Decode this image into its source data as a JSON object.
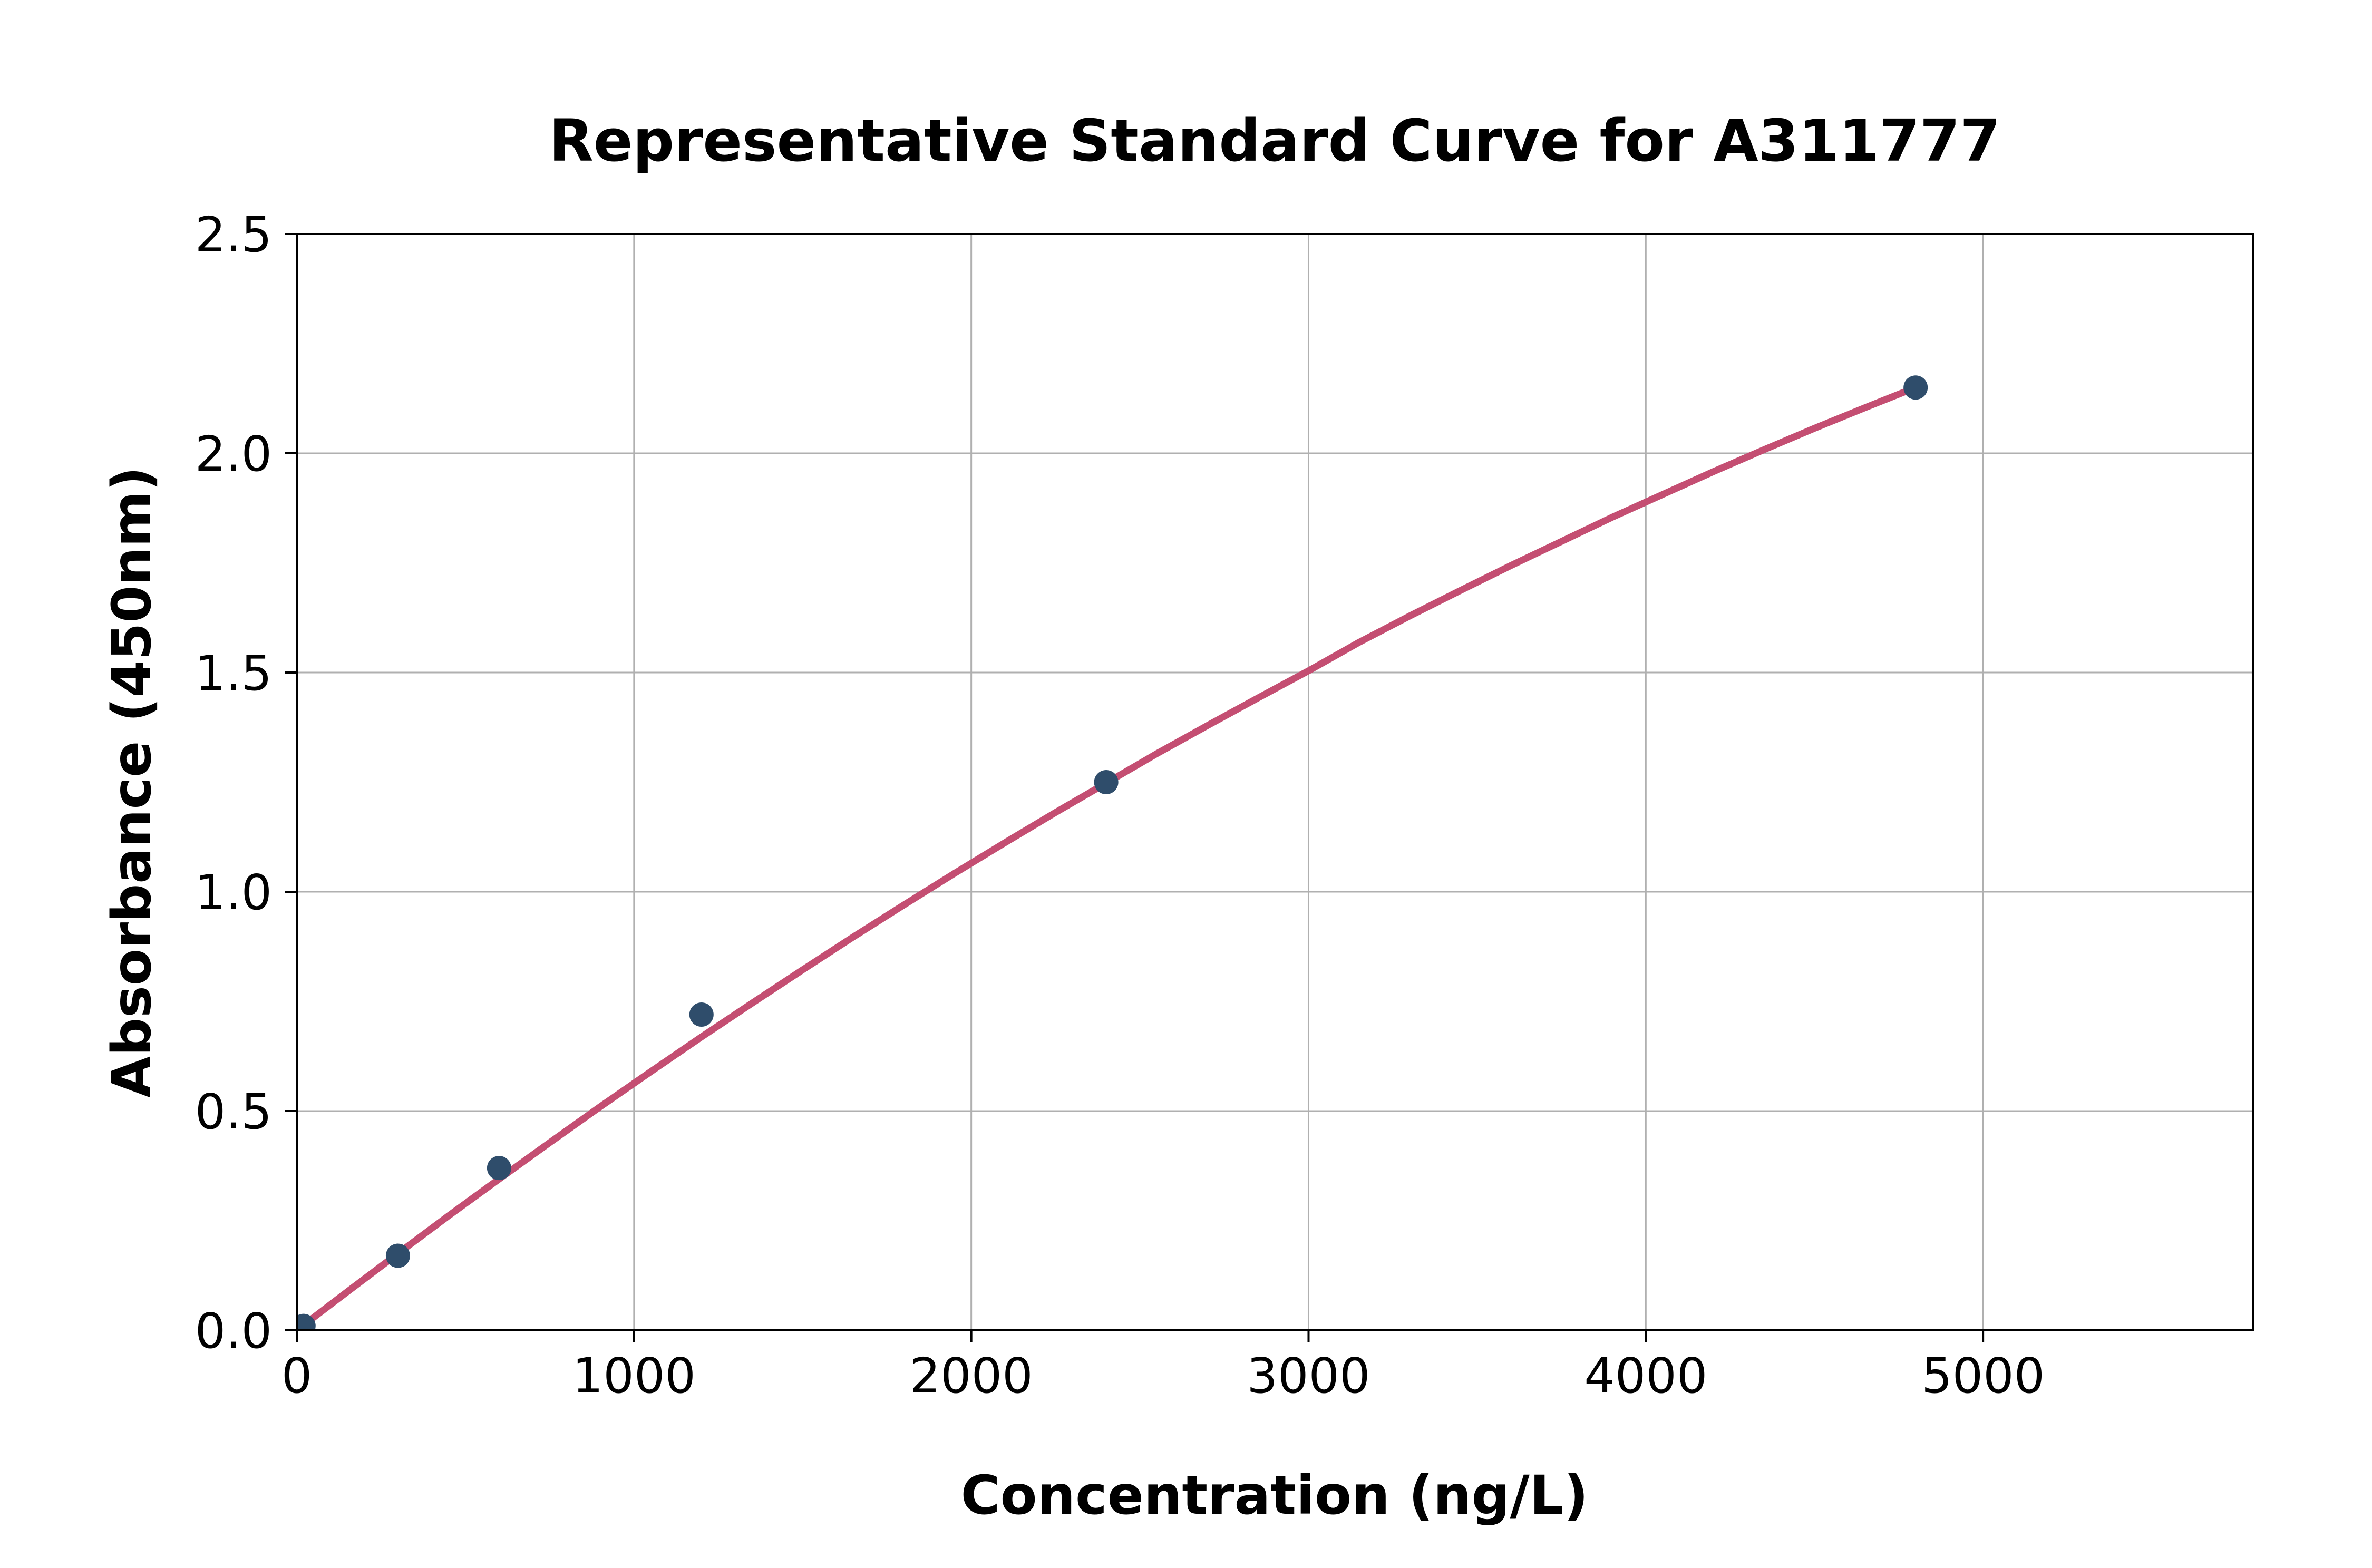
{
  "figure": {
    "background_color": "#ffffff"
  },
  "chart_data": {
    "type": "scatter",
    "title": "Representative Standard Curve for A311777",
    "xlabel": "Concentration (ng/L)",
    "ylabel": "Absorbance (450nm)",
    "xlim": [
      0,
      5800
    ],
    "ylim": [
      0,
      2.5
    ],
    "grid": true,
    "legend": "none",
    "x_ticks": {
      "values": [
        0,
        1000,
        2000,
        3000,
        4000,
        5000
      ],
      "labels": [
        "0",
        "1000",
        "2000",
        "3000",
        "4000",
        "5000"
      ]
    },
    "y_ticks": {
      "values": [
        0,
        0.5,
        1.0,
        1.5,
        2.0,
        2.5
      ],
      "labels": [
        "0.0",
        "0.5",
        "1.0",
        "1.5",
        "2.0",
        "2.5"
      ]
    },
    "points": {
      "x": [
        20,
        300,
        600,
        1200,
        2400,
        4800
      ],
      "y": [
        0.01,
        0.17,
        0.37,
        0.72,
        1.25,
        2.15
      ]
    },
    "fit_curve": {
      "x": [
        0,
        150,
        300,
        450,
        600,
        750,
        900,
        1050,
        1200,
        1350,
        1500,
        1650,
        1800,
        1950,
        2100,
        2250,
        2400,
        2550,
        2700,
        2850,
        3000,
        3150,
        3300,
        3450,
        3600,
        3750,
        3900,
        4050,
        4200,
        4350,
        4500,
        4650,
        4800
      ],
      "y": [
        0.0,
        0.088,
        0.175,
        0.261,
        0.345,
        0.428,
        0.51,
        0.59,
        0.669,
        0.746,
        0.822,
        0.897,
        0.97,
        1.042,
        1.112,
        1.181,
        1.248,
        1.315,
        1.379,
        1.442,
        1.504,
        1.569,
        1.629,
        1.687,
        1.744,
        1.799,
        1.854,
        1.906,
        1.958,
        2.008,
        2.057,
        2.104,
        2.15
      ]
    },
    "colors": {
      "point": "#2F4D6B",
      "curve": "#C44E72",
      "grid": "#B0B0B0",
      "axis": "#000000"
    }
  }
}
